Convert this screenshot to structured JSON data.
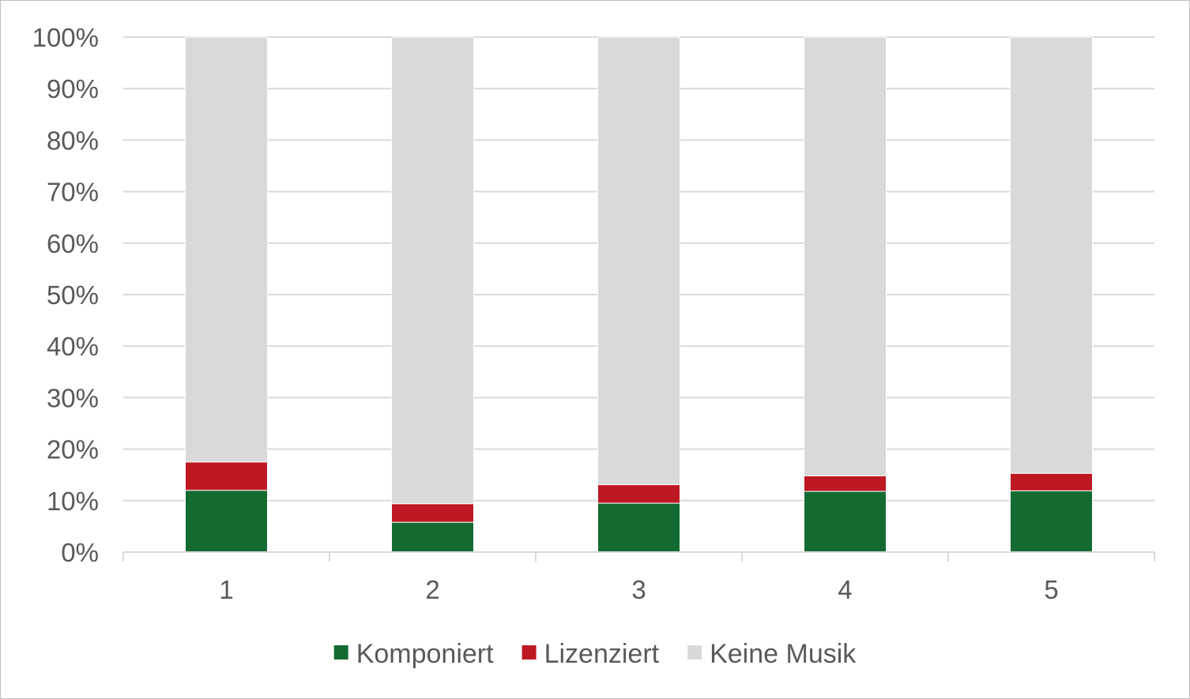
{
  "chart_data": {
    "type": "bar",
    "stacked": true,
    "categories": [
      "1",
      "2",
      "3",
      "4",
      "5"
    ],
    "series": [
      {
        "name": "Komponiert",
        "values": [
          12.0,
          5.8,
          9.5,
          11.8,
          11.9
        ],
        "color": "#136b32"
      },
      {
        "name": "Lizenziert",
        "values": [
          5.5,
          3.6,
          3.6,
          3.0,
          3.4
        ],
        "color": "#be1823"
      },
      {
        "name": "Keine Musik",
        "values": [
          82.5,
          90.6,
          86.9,
          85.2,
          84.7
        ],
        "color": "#d9d9d9"
      }
    ],
    "y_ticks": [
      "0%",
      "10%",
      "20%",
      "30%",
      "40%",
      "50%",
      "60%",
      "70%",
      "80%",
      "90%",
      "100%"
    ],
    "ylim": [
      0,
      100
    ],
    "grid": true,
    "legend_position": "bottom",
    "title": "",
    "xlabel": "",
    "ylabel": ""
  }
}
